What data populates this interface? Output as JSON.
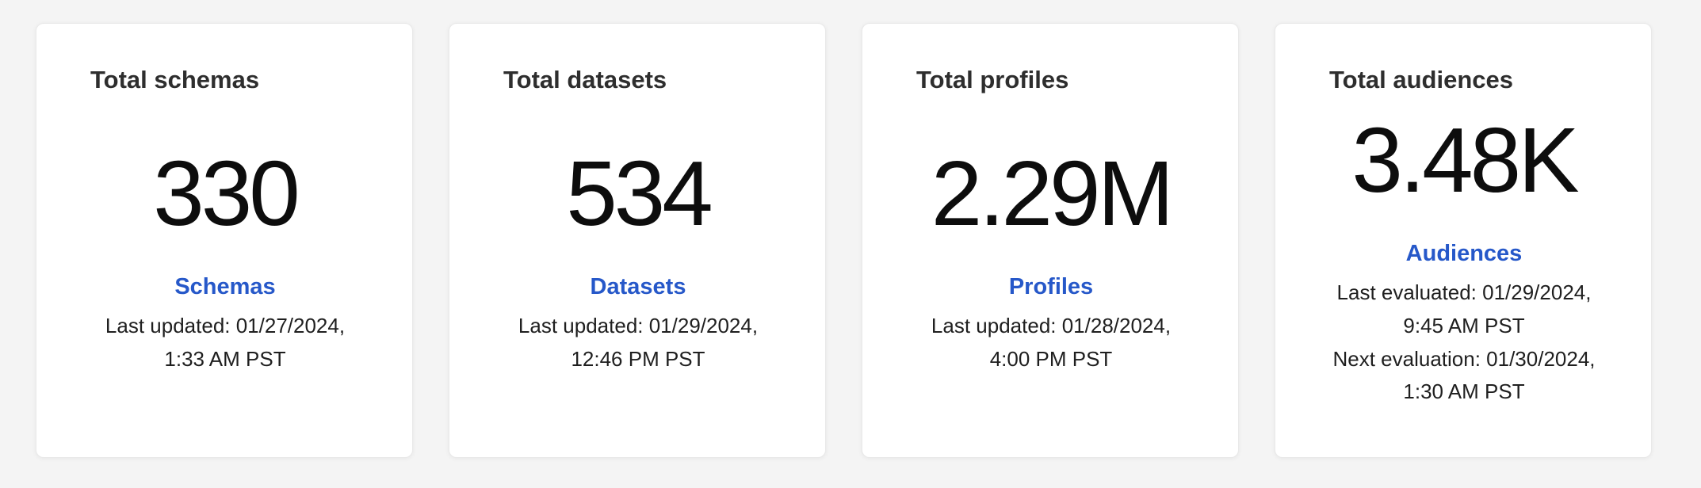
{
  "colors": {
    "page_background": "#f4f4f4",
    "card_background": "#ffffff",
    "card_border": "#e9e9e9",
    "title_text": "#2e2e2e",
    "value_text": "#0d0d0d",
    "caption_text": "#1f1f1f",
    "link_blue": "#2658c9"
  },
  "cards": [
    {
      "title": "Total schemas",
      "value": "330",
      "link_label": "Schemas",
      "captions": [
        "Last updated: 01/27/2024, 1:33 AM PST"
      ]
    },
    {
      "title": "Total datasets",
      "value": "534",
      "link_label": "Datasets",
      "captions": [
        "Last updated: 01/29/2024, 12:46 PM PST"
      ]
    },
    {
      "title": "Total profiles",
      "value": "2.29M",
      "link_label": "Profiles",
      "captions": [
        "Last updated: 01/28/2024, 4:00 PM PST"
      ]
    },
    {
      "title": "Total audiences",
      "value": "3.48K",
      "link_label": "Audiences",
      "captions": [
        "Last evaluated: 01/29/2024, 9:45 AM PST",
        "Next evaluation: 01/30/2024, 1:30 AM PST"
      ]
    }
  ]
}
